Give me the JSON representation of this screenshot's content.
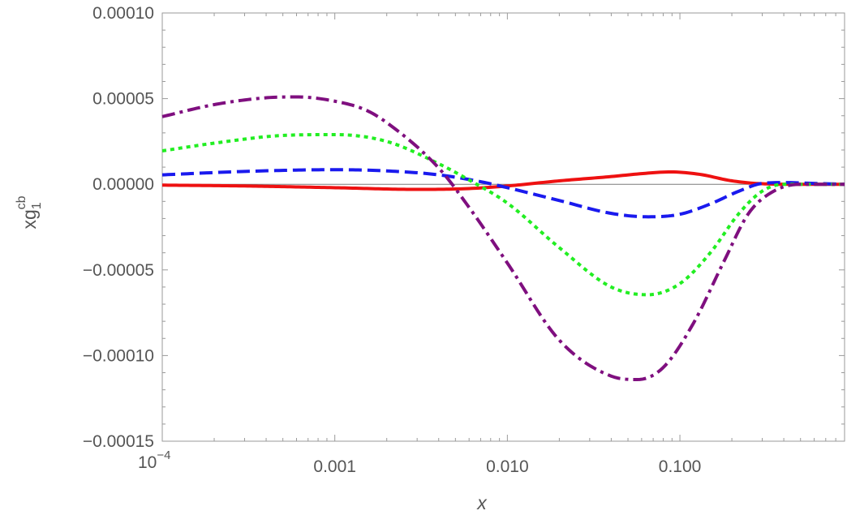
{
  "chart_data": {
    "type": "line",
    "xscale": "log",
    "xlim": [
      0.0001,
      0.9
    ],
    "ylim": [
      -0.00015,
      0.0001
    ],
    "grid": false,
    "xlabel": "x",
    "ylabel": {
      "base": "xg",
      "sub": "1",
      "sup": "cb"
    },
    "x_ticks": [
      {
        "value": 0.0001,
        "base": "10",
        "exp": "−4"
      },
      {
        "value": 0.001,
        "label": "0.001"
      },
      {
        "value": 0.01,
        "label": "0.010"
      },
      {
        "value": 0.1,
        "label": "0.100"
      }
    ],
    "y_ticks": [
      {
        "value": 0.0001,
        "label": "0.00010"
      },
      {
        "value": 5e-05,
        "label": "0.00005"
      },
      {
        "value": 0,
        "label": "0.00000"
      },
      {
        "value": -5e-05,
        "label": "−0.00005"
      },
      {
        "value": -0.0001,
        "label": "−0.00010"
      },
      {
        "value": -0.00015,
        "label": "−0.00015"
      }
    ],
    "series": [
      {
        "color": "#ee1111",
        "dash": "solid",
        "x": [
          0.0001,
          0.0003,
          0.001,
          0.003,
          0.006,
          0.01,
          0.02,
          0.04,
          0.06,
          0.088,
          0.13,
          0.2,
          0.3,
          0.5,
          0.9
        ],
        "y": [
          -5e-07,
          -1e-06,
          -2e-06,
          -3e-06,
          -2.5e-06,
          -1e-06,
          2e-06,
          4.5e-06,
          6.2e-06,
          7.2e-06,
          5.8e-06,
          2e-06,
          3e-07,
          0,
          0
        ]
      },
      {
        "color": "#1a1aee",
        "dash": "dashed",
        "x": [
          0.0001,
          0.0003,
          0.001,
          0.002,
          0.004,
          0.007,
          0.01,
          0.02,
          0.04,
          0.065,
          0.1,
          0.15,
          0.22,
          0.3,
          0.4,
          0.6,
          0.9
        ],
        "y": [
          5.5e-06,
          7.5e-06,
          8.5e-06,
          7.8e-06,
          5.5e-06,
          1.5e-06,
          -2e-06,
          -9.5e-06,
          -1.7e-05,
          -1.9e-05,
          -1.75e-05,
          -1.15e-05,
          -4e-06,
          5e-07,
          1e-06,
          5e-07,
          0
        ]
      },
      {
        "color": "#22ee22",
        "dash": "dotted",
        "x": [
          0.0001,
          0.0002,
          0.0005,
          0.001,
          0.002,
          0.004,
          0.006,
          0.01,
          0.02,
          0.04,
          0.065,
          0.1,
          0.15,
          0.22,
          0.3,
          0.4,
          0.6,
          0.9
        ],
        "y": [
          1.95e-05,
          2.4e-05,
          2.85e-05,
          2.9e-05,
          2.5e-05,
          1.2e-05,
          2.5e-06,
          -1.1e-05,
          -3.7e-05,
          -6e-05,
          -6.45e-05,
          -5.8e-05,
          -4e-05,
          -1.7e-05,
          -4e-06,
          0,
          0,
          0
        ]
      },
      {
        "color": "#7f0f7f",
        "dash": "dashdot",
        "x": [
          0.0001,
          0.0002,
          0.0004,
          0.0006,
          0.001,
          0.0015,
          0.002,
          0.004,
          0.006,
          0.01,
          0.02,
          0.04,
          0.057,
          0.08,
          0.12,
          0.18,
          0.25,
          0.35,
          0.5,
          0.9
        ],
        "y": [
          3.95e-05,
          4.65e-05,
          5.05e-05,
          5.1e-05,
          4.85e-05,
          4.35e-05,
          3.6e-05,
          9.5e-06,
          -1.35e-05,
          -4.6e-05,
          -9.1e-05,
          -0.000112,
          -0.000114,
          -0.000107,
          -8.1e-05,
          -4.5e-05,
          -1.7e-05,
          -4e-06,
          0,
          0
        ]
      }
    ]
  }
}
